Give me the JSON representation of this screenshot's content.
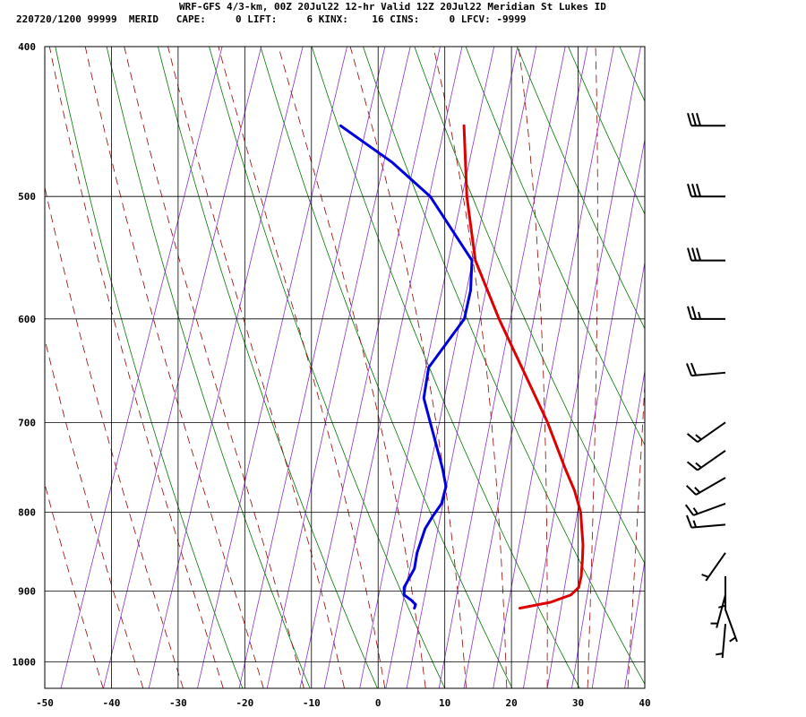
{
  "header": {
    "title_line": "WRF-GFS 4/3-km, 00Z 20Jul22 12-hr Valid 12Z 20Jul22 Meridian St Lukes ID",
    "stats_line": "220720/1200 99999  MERID   CAPE:     0 LIFT:     6 KINX:    16 CINS:     0 LFCV: -9999"
  },
  "chart_data": {
    "type": "line",
    "subtype": "skew-T log-p sounding",
    "x_ticks": [
      "-50",
      "-40",
      "-30",
      "-20",
      "-10",
      "0",
      "10",
      "20",
      "30",
      "40"
    ],
    "x_tick_values": [
      -50,
      -40,
      -30,
      -20,
      -10,
      0,
      10,
      20,
      30,
      40
    ],
    "y_ticks": [
      "400",
      "500",
      "600",
      "700",
      "800",
      "900",
      "1000"
    ],
    "y_tick_values": [
      400,
      500,
      600,
      700,
      800,
      900,
      1000
    ],
    "xlim": [
      -50,
      40
    ],
    "ylim": [
      1040,
      400
    ],
    "y_scale": "log",
    "skew_degC_per_decade": 78,
    "series": [
      {
        "color": "#dd0000",
        "points": [
          [
            923,
            17.2
          ],
          [
            915,
            21.5
          ],
          [
            905,
            24.2
          ],
          [
            895,
            25.0
          ],
          [
            880,
            24.8
          ],
          [
            860,
            24.2
          ],
          [
            840,
            23.5
          ],
          [
            820,
            22.5
          ],
          [
            800,
            21.5
          ],
          [
            775,
            19.5
          ],
          [
            750,
            17.0
          ],
          [
            700,
            12.0
          ],
          [
            650,
            6.0
          ],
          [
            600,
            -0.5
          ],
          [
            550,
            -7.0
          ],
          [
            500,
            -11.5
          ],
          [
            450,
            -15.5
          ]
        ]
      },
      {
        "color": "#0000dd",
        "points": [
          [
            923,
            1.4
          ],
          [
            918,
            1.4
          ],
          [
            912,
            0.5
          ],
          [
            905,
            -0.8
          ],
          [
            895,
            -1.2
          ],
          [
            870,
            -0.6
          ],
          [
            850,
            -1.0
          ],
          [
            820,
            -1.0
          ],
          [
            805,
            -0.5
          ],
          [
            790,
            0.2
          ],
          [
            770,
            0.0
          ],
          [
            750,
            -1.4
          ],
          [
            700,
            -5.6
          ],
          [
            675,
            -7.8
          ],
          [
            645,
            -8.6
          ],
          [
            600,
            -5.7
          ],
          [
            575,
            -6.2
          ],
          [
            550,
            -7.5
          ],
          [
            500,
            -17.0
          ],
          [
            475,
            -24.5
          ],
          [
            450,
            -34.0
          ]
        ]
      }
    ],
    "background_lines": {
      "isotherms_color": "#000000",
      "dry_adiabats_color": "#007700",
      "moist_adiabats_color": "#990000",
      "mixing_ratio_color": "#8833cc"
    },
    "wind_barbs": [
      {
        "p": 450,
        "dir": 270,
        "speed_kt": 30
      },
      {
        "p": 500,
        "dir": 270,
        "speed_kt": 30
      },
      {
        "p": 550,
        "dir": 270,
        "speed_kt": 30
      },
      {
        "p": 600,
        "dir": 270,
        "speed_kt": 25
      },
      {
        "p": 650,
        "dir": 265,
        "speed_kt": 20
      },
      {
        "p": 700,
        "dir": 235,
        "speed_kt": 15
      },
      {
        "p": 730,
        "dir": 235,
        "speed_kt": 15
      },
      {
        "p": 760,
        "dir": 240,
        "speed_kt": 15
      },
      {
        "p": 790,
        "dir": 250,
        "speed_kt": 15
      },
      {
        "p": 815,
        "dir": 265,
        "speed_kt": 15
      },
      {
        "p": 850,
        "dir": 215,
        "speed_kt": 5
      },
      {
        "p": 880,
        "dir": 180,
        "speed_kt": 5
      },
      {
        "p": 905,
        "dir": 195,
        "speed_kt": 5
      },
      {
        "p": 925,
        "dir": 160,
        "speed_kt": 5
      },
      {
        "p": 945,
        "dir": 185,
        "speed_kt": 5
      }
    ]
  }
}
